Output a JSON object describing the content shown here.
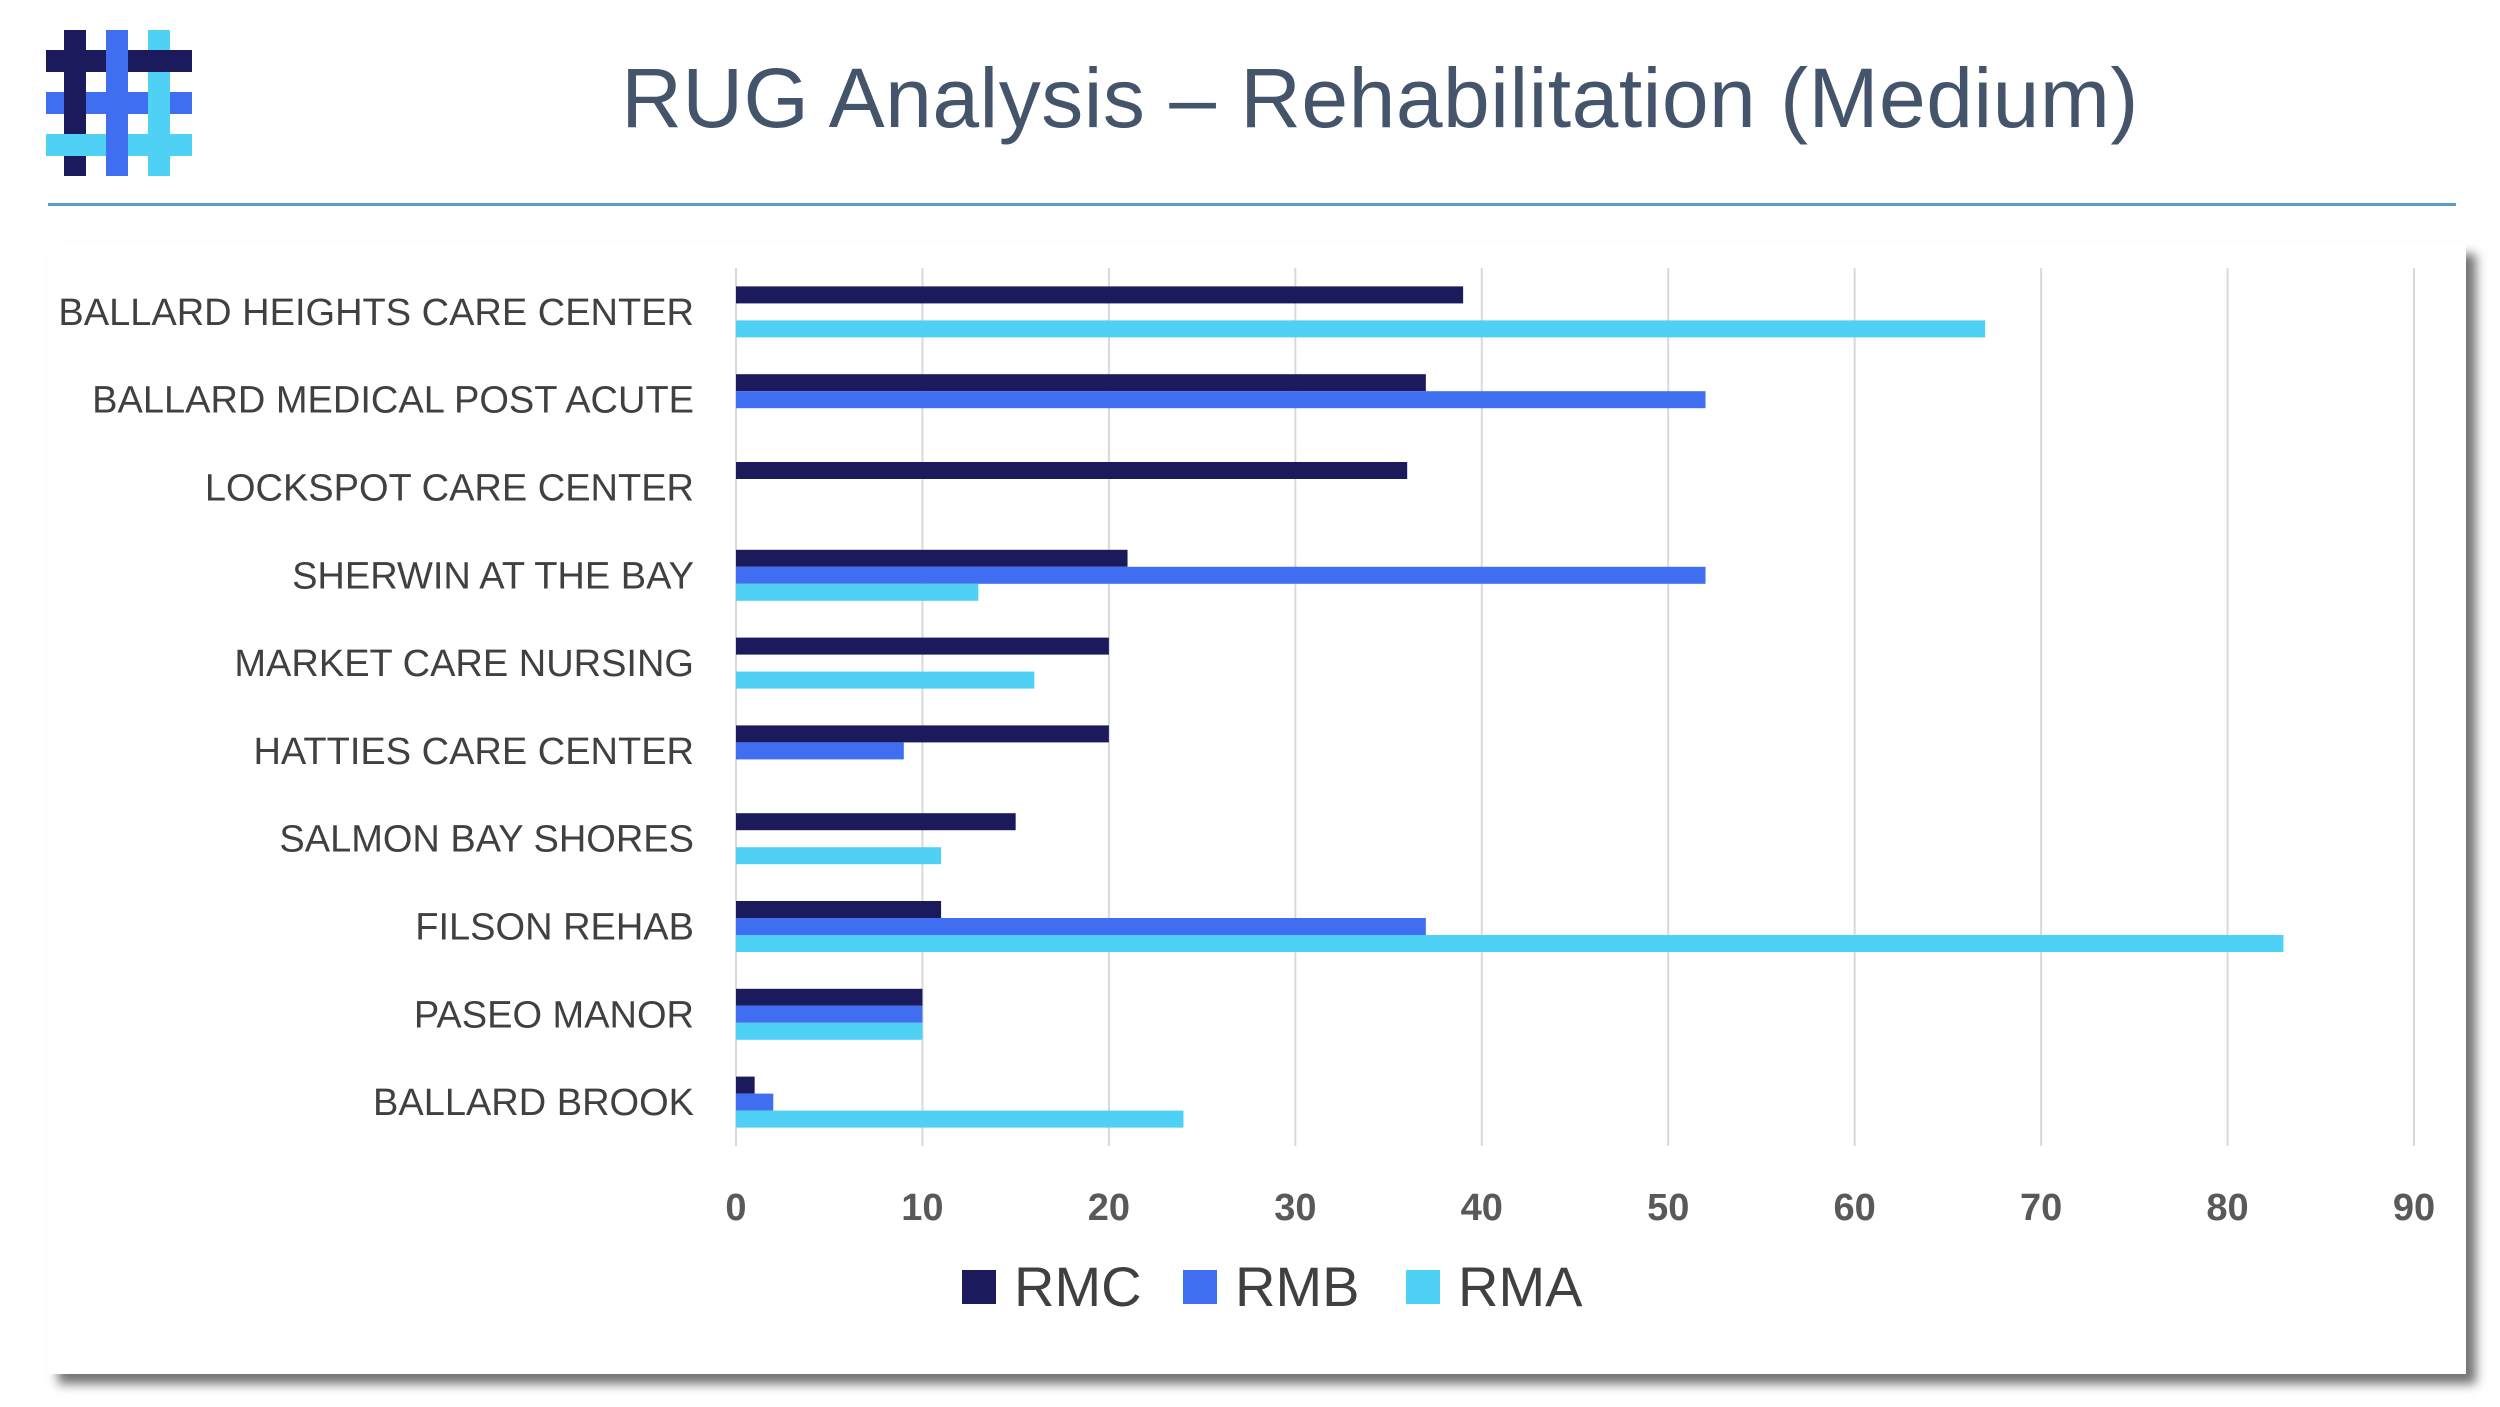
{
  "title": "RUG Analysis – Rehabilitation (Medium)",
  "logo": {
    "icon": "hashtag-weave-logo-icon"
  },
  "colors": {
    "RMC": "#1b1a5c",
    "RMB": "#3f6ff0",
    "RMA": "#4fd0f5",
    "title": "#44546a",
    "rule": "#5b9bd5",
    "grid": "#d9d9d9"
  },
  "chart_data": {
    "type": "bar",
    "orientation": "horizontal",
    "title": "",
    "xlabel": "",
    "ylabel": "",
    "xlim": [
      0,
      90
    ],
    "xticks": [
      0,
      10,
      20,
      30,
      40,
      50,
      60,
      70,
      80,
      90
    ],
    "grid": true,
    "legend_position": "bottom",
    "categories": [
      "BALLARD HEIGHTS CARE CENTER",
      "BALLARD MEDICAL POST ACUTE",
      "LOCKSPOT CARE CENTER",
      "SHERWIN AT THE BAY",
      "MARKET CARE NURSING",
      "HATTIES CARE CENTER",
      "SALMON BAY SHORES",
      "FILSON REHAB",
      "PASEO MANOR",
      "BALLARD BROOK"
    ],
    "series": [
      {
        "name": "RMC",
        "values": [
          39,
          37,
          36,
          21,
          20,
          20,
          15,
          11,
          10,
          1
        ]
      },
      {
        "name": "RMB",
        "values": [
          0,
          52,
          0,
          52,
          0,
          9,
          0,
          37,
          10,
          2
        ]
      },
      {
        "name": "RMA",
        "values": [
          67,
          0,
          0,
          13,
          16,
          0,
          11,
          83,
          10,
          24
        ]
      }
    ]
  }
}
